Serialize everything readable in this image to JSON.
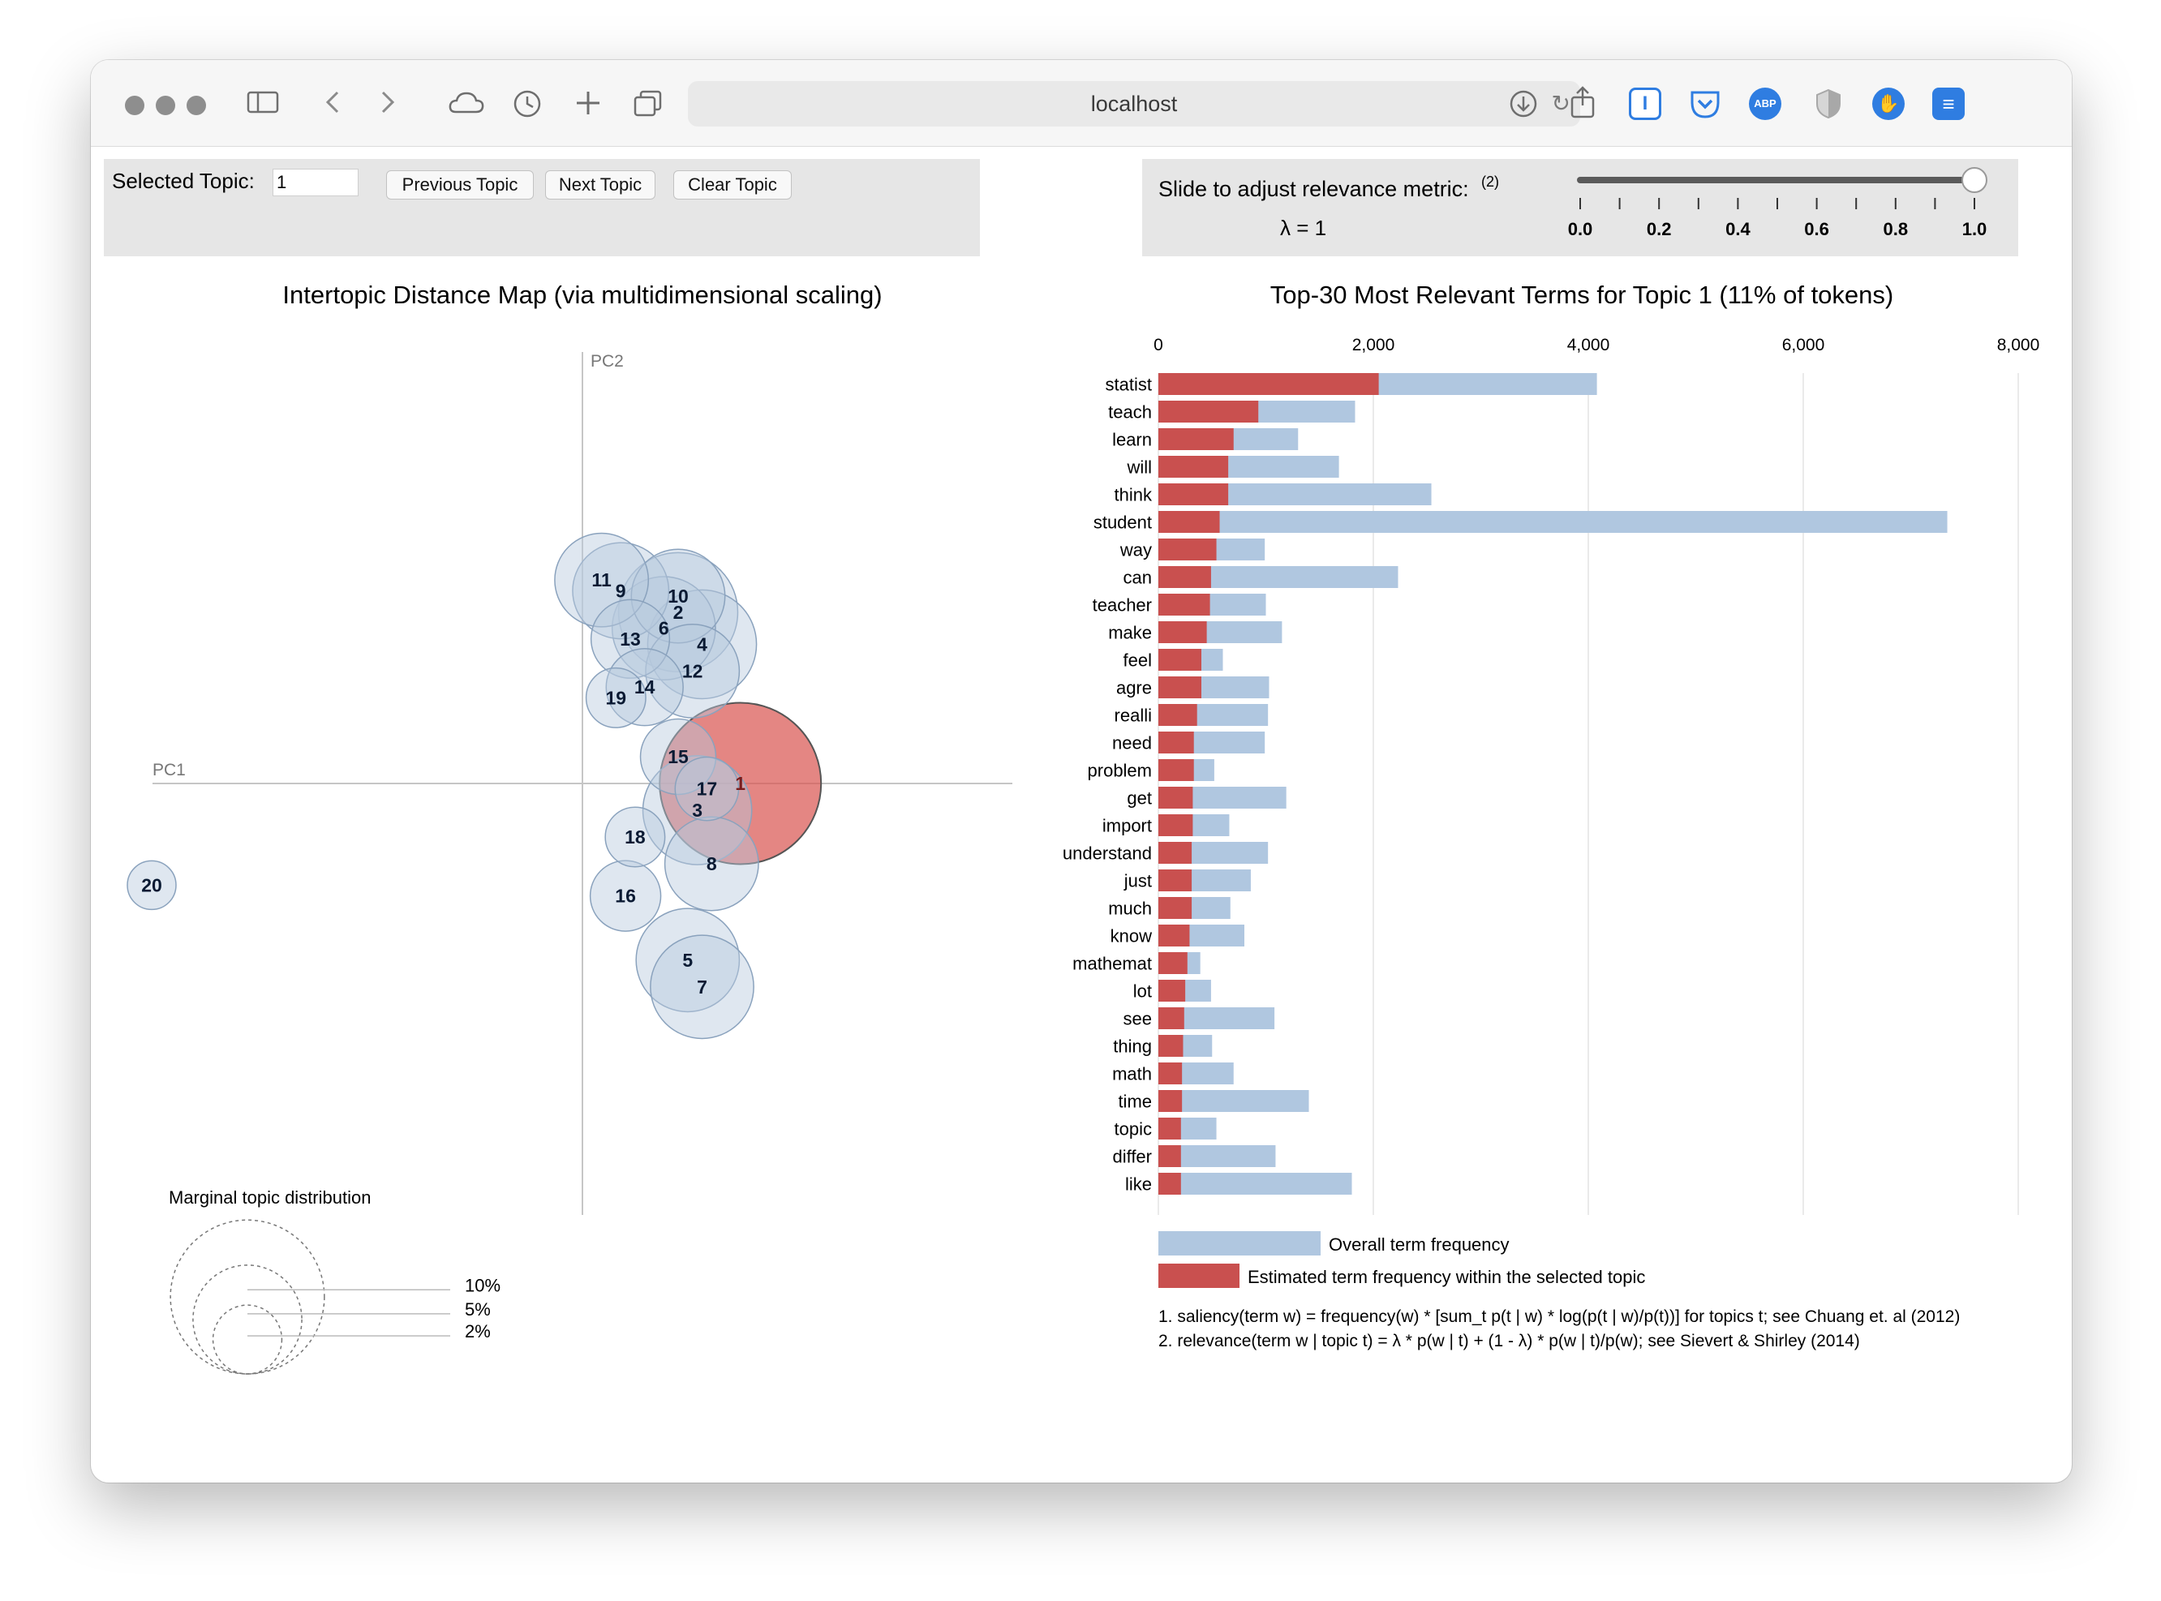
{
  "browser": {
    "url": "localhost",
    "toolbar_icons": [
      "sidebar-icon",
      "back-icon",
      "forward-icon",
      "icloud-tabs-icon",
      "history-icon",
      "new-tab-icon",
      "tab-overview-icon"
    ],
    "extensions": [
      {
        "name": "reader-extension-icon",
        "label": "I",
        "color": "#2f7de1"
      },
      {
        "name": "pocket-icon",
        "label": "✓",
        "color": "#2f7de1"
      },
      {
        "name": "adblock-plus-icon",
        "label": "ABP",
        "color": "#2f7de1"
      },
      {
        "name": "privacy-shield-icon",
        "label": "",
        "color": "#b9b9b9"
      },
      {
        "name": "stop-hand-icon",
        "label": "✋",
        "color": "#2f7de1"
      },
      {
        "name": "stack-icon",
        "label": "≡",
        "color": "#2f7de1"
      }
    ]
  },
  "controls": {
    "selected_topic_label": "Selected Topic:",
    "selected_topic_value": "1",
    "previous_label": "Previous Topic",
    "next_label": "Next Topic",
    "clear_label": "Clear Topic",
    "slider_label": "Slide to adjust relevance metric:",
    "slider_footnote": "(2)",
    "lambda_text": "λ = 1",
    "lambda_value": 1,
    "slider_ticks": [
      "0.0",
      "0.2",
      "0.4",
      "0.6",
      "0.8",
      "1.0"
    ]
  },
  "chart_data": [
    {
      "type": "scatter",
      "title": "Intertopic Distance Map (via multidimensional scaling)",
      "xlabel": "PC1",
      "ylabel": "PC2",
      "xlim": [
        -1,
        1
      ],
      "ylim": [
        -1,
        1
      ],
      "selected_topic": 1,
      "colors": {
        "topic": "#b7c9de",
        "selected": "#d9534f"
      },
      "points": [
        {
          "topic": 1,
          "x": 0.33,
          "y": 0.0,
          "size": 11
        },
        {
          "topic": 2,
          "x": 0.2,
          "y": 0.32,
          "size": 6
        },
        {
          "topic": 3,
          "x": 0.24,
          "y": -0.05,
          "size": 5
        },
        {
          "topic": 4,
          "x": 0.25,
          "y": 0.26,
          "size": 5
        },
        {
          "topic": 5,
          "x": 0.22,
          "y": -0.33,
          "size": 4.5
        },
        {
          "topic": 6,
          "x": 0.17,
          "y": 0.29,
          "size": 4.5
        },
        {
          "topic": 7,
          "x": 0.25,
          "y": -0.38,
          "size": 4.5
        },
        {
          "topic": 8,
          "x": 0.27,
          "y": -0.15,
          "size": 3.7
        },
        {
          "topic": 9,
          "x": 0.08,
          "y": 0.36,
          "size": 3.9
        },
        {
          "topic": 10,
          "x": 0.2,
          "y": 0.35,
          "size": 3.7
        },
        {
          "topic": 11,
          "x": 0.04,
          "y": 0.38,
          "size": 3.7
        },
        {
          "topic": 12,
          "x": 0.23,
          "y": 0.21,
          "size": 3.7
        },
        {
          "topic": 13,
          "x": 0.1,
          "y": 0.27,
          "size": 2.6
        },
        {
          "topic": 14,
          "x": 0.13,
          "y": 0.18,
          "size": 2.5
        },
        {
          "topic": 15,
          "x": 0.2,
          "y": 0.05,
          "size": 2.4
        },
        {
          "topic": 16,
          "x": 0.09,
          "y": -0.21,
          "size": 2.1
        },
        {
          "topic": 17,
          "x": 0.26,
          "y": -0.01,
          "size": 1.7
        },
        {
          "topic": 18,
          "x": 0.11,
          "y": -0.1,
          "size": 1.5
        },
        {
          "topic": 19,
          "x": 0.07,
          "y": 0.16,
          "size": 1.5
        },
        {
          "topic": 20,
          "x": -0.9,
          "y": -0.19,
          "size": 1.0
        }
      ],
      "legend": {
        "title": "Marginal topic distribution",
        "entries": [
          "2%",
          "5%",
          "10%"
        ],
        "values": [
          2,
          5,
          10
        ]
      }
    },
    {
      "type": "bar",
      "title": "Top-30 Most Relevant Terms for Topic 1 (11% of tokens)",
      "xlim": [
        0,
        8000
      ],
      "ticks": [
        "0",
        "2,000",
        "4,000",
        "6,000",
        "8,000"
      ],
      "tick_values": [
        0,
        2000,
        4000,
        6000,
        8000
      ],
      "categories": [
        "statist",
        "teach",
        "learn",
        "will",
        "think",
        "student",
        "way",
        "can",
        "teacher",
        "make",
        "feel",
        "agre",
        "realli",
        "need",
        "problem",
        "get",
        "import",
        "understand",
        "just",
        "much",
        "know",
        "mathemat",
        "lot",
        "see",
        "thing",
        "math",
        "time",
        "topic",
        "differ",
        "like"
      ],
      "series": [
        {
          "name": "Overall term frequency",
          "color": "#b0c7e0",
          "values": [
            4080,
            1830,
            1300,
            1680,
            2540,
            7340,
            990,
            2230,
            1000,
            1150,
            600,
            1030,
            1020,
            990,
            520,
            1190,
            660,
            1020,
            860,
            670,
            800,
            390,
            490,
            1080,
            500,
            700,
            1400,
            540,
            1090,
            1800
          ]
        },
        {
          "name": "Estimated term frequency within the selected topic",
          "color": "#c9504f",
          "values": [
            2050,
            930,
            700,
            650,
            650,
            570,
            540,
            490,
            480,
            450,
            400,
            400,
            360,
            330,
            330,
            320,
            320,
            310,
            310,
            310,
            290,
            270,
            250,
            240,
            230,
            220,
            220,
            210,
            210,
            210
          ]
        }
      ],
      "footnotes": [
        "1. saliency(term w) = frequency(w) * [sum_t p(t | w) * log(p(t | w)/p(t))] for topics t; see Chuang et. al (2012)",
        "2. relevance(term w | topic t) = λ * p(w | t) + (1 - λ) * p(w | t)/p(w); see Sievert & Shirley (2014)"
      ]
    }
  ]
}
